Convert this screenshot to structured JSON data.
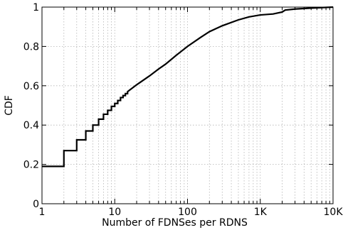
{
  "chart_data": {
    "type": "line",
    "title": "",
    "xlabel": "Number of FDNSes per RDNS",
    "ylabel": "CDF",
    "xscale": "log",
    "xlim": [
      1,
      10000
    ],
    "ylim": [
      0,
      1
    ],
    "grid": true,
    "x_ticks": [
      1,
      10,
      100,
      1000,
      10000
    ],
    "x_tick_labels": [
      "1",
      "10",
      "100",
      "1K",
      "10K"
    ],
    "y_ticks": [
      0,
      0.2,
      0.4,
      0.6,
      0.8,
      1
    ],
    "y_tick_labels": [
      "0",
      "0.2",
      "0.4",
      "0.6",
      "0.8",
      "1"
    ],
    "series": [
      {
        "step_points": [
          [
            1,
            0.19
          ],
          [
            2,
            0.19
          ],
          [
            2,
            0.27
          ],
          [
            3,
            0.27
          ],
          [
            3,
            0.325
          ],
          [
            4,
            0.325
          ],
          [
            4,
            0.37
          ],
          [
            5,
            0.37
          ],
          [
            5,
            0.4
          ],
          [
            6,
            0.4
          ],
          [
            6,
            0.43
          ],
          [
            7,
            0.43
          ],
          [
            7,
            0.455
          ],
          [
            8,
            0.455
          ],
          [
            8,
            0.475
          ],
          [
            9,
            0.475
          ],
          [
            9,
            0.495
          ],
          [
            10,
            0.495
          ],
          [
            10,
            0.51
          ],
          [
            11,
            0.51
          ],
          [
            11,
            0.525
          ],
          [
            12,
            0.525
          ],
          [
            12,
            0.54
          ],
          [
            13,
            0.54
          ],
          [
            13,
            0.55
          ],
          [
            14,
            0.55
          ],
          [
            14,
            0.56
          ],
          [
            15,
            0.56
          ],
          [
            15,
            0.57
          ]
        ],
        "smooth_points": [
          [
            15,
            0.57
          ],
          [
            20,
            0.605
          ],
          [
            30,
            0.65
          ],
          [
            40,
            0.685
          ],
          [
            50,
            0.71
          ],
          [
            70,
            0.755
          ],
          [
            100,
            0.8
          ],
          [
            150,
            0.845
          ],
          [
            200,
            0.875
          ],
          [
            300,
            0.905
          ],
          [
            500,
            0.935
          ],
          [
            700,
            0.95
          ],
          [
            1000,
            0.96
          ],
          [
            1500,
            0.965
          ],
          [
            2000,
            0.975
          ],
          [
            2200,
            0.985
          ],
          [
            3000,
            0.99
          ],
          [
            5000,
            0.995
          ],
          [
            10000,
            1.0
          ]
        ]
      }
    ]
  }
}
